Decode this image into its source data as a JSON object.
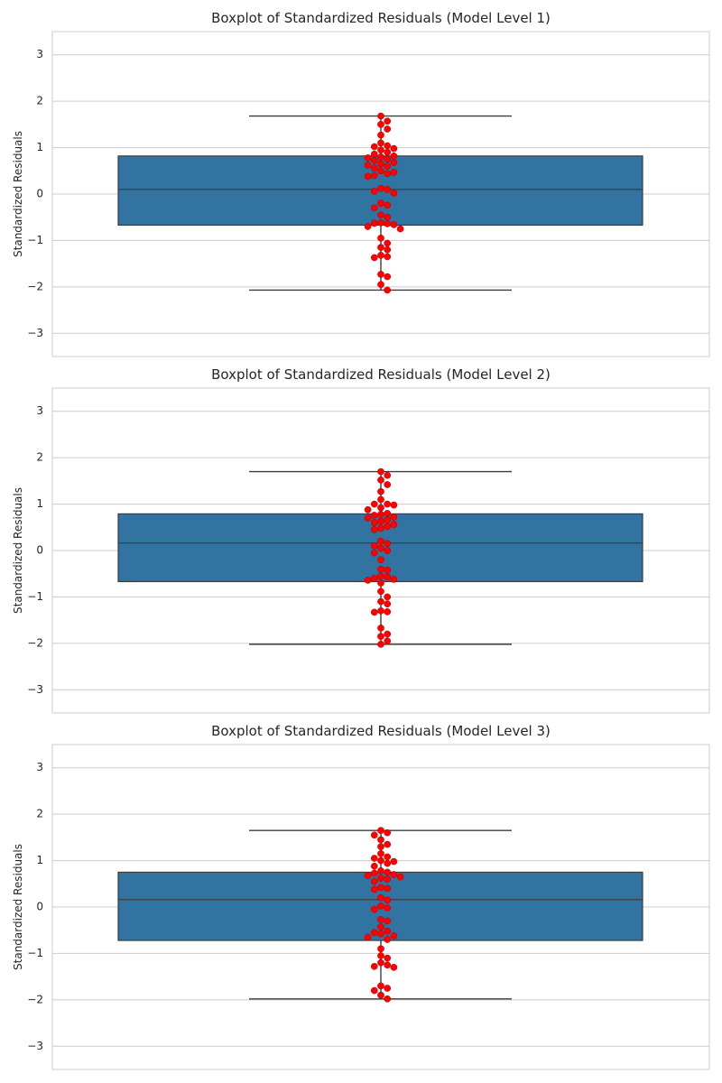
{
  "colors": {
    "box": "#3274a1",
    "points": "#ff0000",
    "grid": "#cccccc",
    "line": "#3d3d3d"
  },
  "chart_data": [
    {
      "type": "box",
      "title": "Boxplot of Standardized Residuals (Model Level 1)",
      "ylabel": "Standardized Residuals",
      "ylim": [
        -3.5,
        3.5
      ],
      "yticks": [
        -3,
        -2,
        -1,
        0,
        1,
        2,
        3
      ],
      "grid": true,
      "box": {
        "whisker_low": -2.07,
        "q1": -0.67,
        "median": 0.1,
        "q3": 0.82,
        "whisker_high": 1.68
      },
      "points": [
        1.68,
        1.57,
        1.5,
        1.4,
        1.27,
        1.1,
        1.04,
        1.02,
        0.98,
        0.95,
        0.9,
        0.86,
        0.82,
        0.8,
        0.78,
        0.75,
        0.72,
        0.68,
        0.65,
        0.62,
        0.6,
        0.56,
        0.5,
        0.47,
        0.44,
        0.4,
        0.38,
        0.12,
        0.1,
        0.06,
        0.02,
        -0.2,
        -0.24,
        -0.3,
        -0.45,
        -0.5,
        -0.62,
        -0.63,
        -0.64,
        -0.66,
        -0.7,
        -0.75,
        -0.95,
        -1.06,
        -1.15,
        -1.2,
        -1.32,
        -1.35,
        -1.37,
        -1.73,
        -1.78,
        -1.95,
        -2.07
      ]
    },
    {
      "type": "box",
      "title": "Boxplot of Standardized Residuals (Model Level 2)",
      "ylabel": "Standardized Residuals",
      "ylim": [
        -3.5,
        3.5
      ],
      "yticks": [
        -3,
        -2,
        -1,
        0,
        1,
        2,
        3
      ],
      "grid": true,
      "box": {
        "whisker_low": -2.02,
        "q1": -0.67,
        "median": 0.16,
        "q3": 0.79,
        "whisker_high": 1.7
      },
      "points": [
        1.7,
        1.62,
        1.52,
        1.42,
        1.27,
        1.1,
        1.0,
        1.0,
        0.98,
        0.92,
        0.88,
        0.8,
        0.78,
        0.76,
        0.72,
        0.7,
        0.66,
        0.63,
        0.6,
        0.56,
        0.52,
        0.48,
        0.45,
        0.2,
        0.15,
        0.1,
        0.05,
        0.0,
        -0.05,
        -0.2,
        -0.4,
        -0.42,
        -0.55,
        -0.57,
        -0.6,
        -0.62,
        -0.64,
        -0.7,
        -0.88,
        -1.0,
        -1.1,
        -1.15,
        -1.3,
        -1.32,
        -1.33,
        -1.67,
        -1.8,
        -1.85,
        -1.95,
        -2.02
      ]
    },
    {
      "type": "box",
      "title": "Boxplot of Standardized Residuals (Model Level 3)",
      "ylabel": "Standardized Residuals",
      "ylim": [
        -3.5,
        3.5
      ],
      "yticks": [
        -3,
        -2,
        -1,
        0,
        1,
        2,
        3
      ],
      "grid": true,
      "box": {
        "whisker_low": -1.98,
        "q1": -0.72,
        "median": 0.16,
        "q3": 0.75,
        "whisker_high": 1.65
      },
      "points": [
        1.65,
        1.6,
        1.55,
        1.45,
        1.35,
        1.3,
        1.15,
        1.08,
        1.05,
        1.0,
        0.98,
        0.94,
        0.88,
        0.78,
        0.75,
        0.73,
        0.7,
        0.68,
        0.65,
        0.62,
        0.6,
        0.55,
        0.42,
        0.4,
        0.38,
        0.2,
        0.15,
        0.02,
        -0.02,
        -0.05,
        -0.27,
        -0.3,
        -0.43,
        -0.52,
        -0.55,
        -0.58,
        -0.62,
        -0.65,
        -0.7,
        -0.9,
        -1.05,
        -1.1,
        -1.2,
        -1.25,
        -1.28,
        -1.3,
        -1.7,
        -1.75,
        -1.8,
        -1.9,
        -1.98
      ]
    }
  ]
}
